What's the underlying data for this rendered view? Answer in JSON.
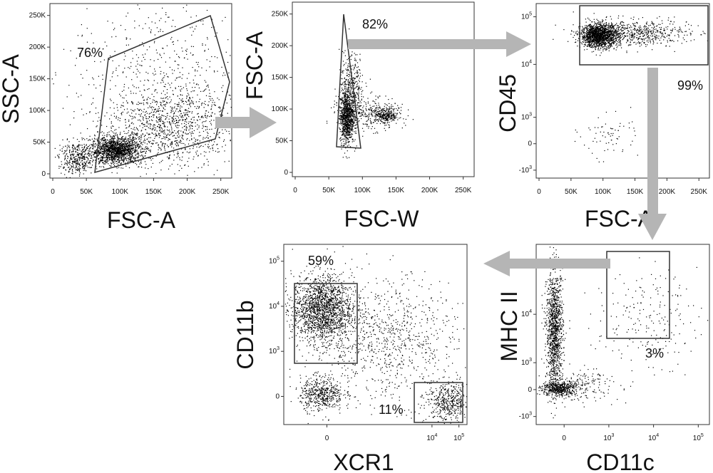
{
  "colors": {
    "dots": "#000000",
    "arrow": "#b5b5b5",
    "gate": "#333333"
  },
  "chart_data": [
    {
      "type": "scatter",
      "xlabel": "FSC-A",
      "ylabel": "SSC-A",
      "xlim": [
        0,
        262144
      ],
      "ylim": [
        0,
        262144
      ],
      "x_ticks": [
        "0",
        "50K",
        "100K",
        "150K",
        "200K",
        "250K"
      ],
      "y_ticks": [
        "0",
        "50K",
        "100K",
        "150K",
        "200K",
        "250K"
      ],
      "gate_percent": "76%",
      "populations": [
        {
          "cx": 95000,
          "cy": 42000,
          "sx": 18000,
          "sy": 10000,
          "n": 1500
        },
        {
          "cx": 40000,
          "cy": 30000,
          "sx": 14000,
          "sy": 12000,
          "n": 400
        },
        {
          "cx": 170000,
          "cy": 80000,
          "sx": 45000,
          "sy": 30000,
          "n": 1100
        },
        {
          "cx": 160000,
          "cy": 160000,
          "sx": 65000,
          "sy": 60000,
          "n": 500
        }
      ]
    },
    {
      "type": "scatter",
      "xlabel": "FSC-W",
      "ylabel": "FSC-A",
      "xlim": [
        0,
        262144
      ],
      "ylim": [
        0,
        262144
      ],
      "x_ticks": [
        "0",
        "50K",
        "100K",
        "150K",
        "200K",
        "250K"
      ],
      "y_ticks": [
        "0",
        "50K",
        "100K",
        "150K",
        "200K",
        "250K"
      ],
      "gate_percent": "82%",
      "populations": [
        {
          "cx": 78000,
          "cy": 90000,
          "sx": 5000,
          "sy": 20000,
          "n": 900
        },
        {
          "cx": 85000,
          "cy": 130000,
          "sx": 9000,
          "sy": 28000,
          "n": 400
        },
        {
          "cx": 135000,
          "cy": 92000,
          "sx": 9000,
          "sy": 6000,
          "n": 250
        },
        {
          "cx": 110000,
          "cy": 95000,
          "sx": 22000,
          "sy": 12000,
          "n": 300
        }
      ]
    },
    {
      "type": "scatter",
      "xlabel": "FSC-A",
      "ylabel": "CD45",
      "xlim": [
        0,
        262144
      ],
      "ylim": [
        -1.3,
        5.3
      ],
      "x_ticks": [
        "0",
        "50K",
        "100K",
        "150K",
        "200K",
        "250K"
      ],
      "y_ticks": [
        {
          "base": "-10",
          "exp": "3",
          "v": -1.0
        },
        {
          "base": "0",
          "exp": "",
          "v": 0
        },
        {
          "base": "10",
          "exp": "3",
          "v": 1.0
        },
        {
          "base": "10",
          "exp": "4",
          "v": 3.0
        },
        {
          "base": "10",
          "exp": "5",
          "v": 4.8
        }
      ],
      "gate_percent": "99%",
      "populations": [
        {
          "cx": 95000,
          "cy": 4.1,
          "sx": 14000,
          "sy": 0.22,
          "n": 1500
        },
        {
          "cx": 150000,
          "cy": 4.2,
          "sx": 40000,
          "sy": 0.25,
          "n": 600
        },
        {
          "cx": 110000,
          "cy": 0.3,
          "sx": 22000,
          "sy": 0.4,
          "n": 70
        }
      ]
    },
    {
      "type": "scatter",
      "xlabel": "XCR1",
      "ylabel": "CD11b",
      "xlim": [
        -1.6,
        5.2
      ],
      "ylim": [
        -1.0,
        5.4
      ],
      "x_ticks": [
        {
          "base": "0",
          "exp": "",
          "v": 0
        },
        {
          "base": "10",
          "exp": "4",
          "v": 3.9
        },
        {
          "base": "10",
          "exp": "5",
          "v": 4.9
        }
      ],
      "y_ticks": [
        {
          "base": "0",
          "exp": "",
          "v": 0
        },
        {
          "base": "10",
          "exp": "3",
          "v": 1.6
        },
        {
          "base": "10",
          "exp": "4",
          "v": 3.2
        },
        {
          "base": "10",
          "exp": "5",
          "v": 4.8
        }
      ],
      "gate_percent_1": "59%",
      "gate_percent_2": "11%",
      "populations": [
        {
          "cx": -0.2,
          "cy": 3.1,
          "sx": 0.55,
          "sy": 0.6,
          "n": 1800
        },
        {
          "cx": -0.2,
          "cy": 0.1,
          "sx": 0.4,
          "sy": 0.3,
          "n": 500
        },
        {
          "cx": 4.5,
          "cy": -0.2,
          "sx": 0.4,
          "sy": 0.35,
          "n": 450
        },
        {
          "cx": 2.2,
          "cy": 2.0,
          "sx": 1.3,
          "sy": 1.1,
          "n": 900
        }
      ]
    },
    {
      "type": "scatter",
      "xlabel": "CD11c",
      "ylabel": "MHC II",
      "xlim": [
        -1.0,
        5.2
      ],
      "ylim": [
        -1.3,
        5.4
      ],
      "x_ticks": [
        {
          "base": "0",
          "exp": "",
          "v": 0
        },
        {
          "base": "10",
          "exp": "3",
          "v": 1.6
        },
        {
          "base": "10",
          "exp": "4",
          "v": 3.2
        },
        {
          "base": "10",
          "exp": "5",
          "v": 4.8
        }
      ],
      "y_ticks": [
        {
          "base": "-10",
          "exp": "3",
          "v": -1.0
        },
        {
          "base": "0",
          "exp": "",
          "v": 0
        },
        {
          "base": "10",
          "exp": "3",
          "v": 1.0
        },
        {
          "base": "10",
          "exp": "4",
          "v": 2.8
        },
        {
          "base": "10",
          "exp": "5",
          "v": 4.6
        }
      ],
      "gate_percent": "3%",
      "populations": [
        {
          "cx": -0.35,
          "cy": 2.2,
          "sx": 0.15,
          "sy": 1.1,
          "n": 1200
        },
        {
          "cx": -0.2,
          "cy": 0.05,
          "sx": 0.3,
          "sy": 0.15,
          "n": 500
        },
        {
          "cx": 0.8,
          "cy": 0.2,
          "sx": 0.6,
          "sy": 0.3,
          "n": 150
        },
        {
          "cx": 2.9,
          "cy": 2.6,
          "sx": 0.9,
          "sy": 0.9,
          "n": 200
        }
      ]
    }
  ]
}
